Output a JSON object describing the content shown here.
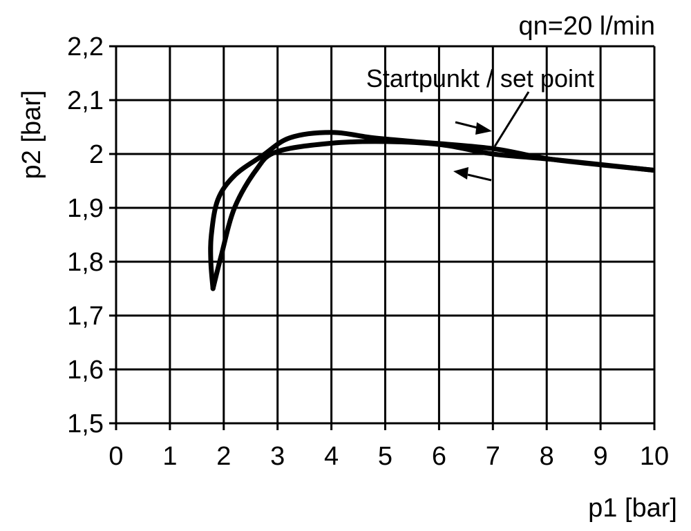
{
  "chart_data": {
    "type": "line",
    "title": "",
    "note": "qn=20 l/min",
    "xlabel": "p1 [bar]",
    "ylabel": "p2 [bar]",
    "xlim": [
      0,
      10
    ],
    "ylim": [
      1.5,
      2.2
    ],
    "grid": true,
    "xticks": [
      "0",
      "1",
      "2",
      "3",
      "4",
      "5",
      "6",
      "7",
      "8",
      "9",
      "10"
    ],
    "yticks": [
      "1,5",
      "1,6",
      "1,7",
      "1,8",
      "1,9",
      "2",
      "2,1",
      "2,2"
    ],
    "annotation": "Startpunkt / set point",
    "annotation_point": [
      7,
      2.01
    ],
    "colors": {
      "line": "#000000",
      "grid": "#000000"
    },
    "series": [
      {
        "x": [
          1.8,
          1.76,
          1.77,
          1.89,
          2.2,
          2.72,
          3.23,
          4.0,
          4.78,
          5.55,
          7.0,
          8.1,
          9.97
        ],
        "y": [
          1.75,
          1.8,
          1.85,
          1.915,
          1.96,
          1.997,
          2.03,
          2.04,
          2.03,
          2.023,
          2.01,
          1.99,
          1.97
        ]
      },
      {
        "x": [
          1.8,
          1.95,
          2.2,
          2.6,
          2.98,
          4.0,
          5.03,
          6.06,
          7.0,
          8.1,
          9.97
        ],
        "y": [
          1.75,
          1.81,
          1.9,
          1.97,
          2.004,
          2.02,
          2.023,
          2.017,
          2.0,
          1.99,
          1.97
        ]
      }
    ]
  }
}
